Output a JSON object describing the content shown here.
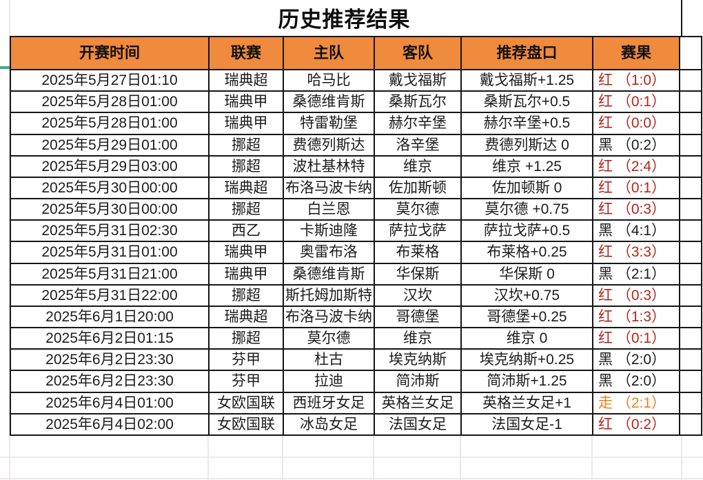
{
  "title": "历史推荐结果",
  "table": {
    "headers": [
      "开赛时间",
      "联赛",
      "主队",
      "客队",
      "推荐盘口",
      "赛果"
    ],
    "rows": [
      {
        "time": "2025年5月27日01:10",
        "league": "瑞典超",
        "home": "哈马比",
        "away": "戴戈福斯",
        "handicap": "戴戈福斯+1.25",
        "result": "红 （1:0）",
        "result_type": "red"
      },
      {
        "time": "2025年5月28日01:00",
        "league": "瑞典甲",
        "home": "桑德维肯斯",
        "away": "桑斯瓦尔",
        "handicap": "桑斯瓦尔+0.5",
        "result": "红 （0:1）",
        "result_type": "red"
      },
      {
        "time": "2025年5月28日01:00",
        "league": "瑞典甲",
        "home": "特雷勒堡",
        "away": "赫尔辛堡",
        "handicap": "赫尔辛堡+0.5",
        "result": "红 （0:0）",
        "result_type": "red"
      },
      {
        "time": "2025年5月29日01:00",
        "league": "挪超",
        "home": "费德列斯达",
        "away": "洛辛堡",
        "handicap": "费德列斯达 0",
        "result": "黑 （0:2）",
        "result_type": "black"
      },
      {
        "time": "2025年5月29日03:00",
        "league": "挪超",
        "home": "波杜基林特",
        "away": "维京",
        "handicap": "维京 +1.25",
        "result": "红 （2:4）",
        "result_type": "red"
      },
      {
        "time": "2025年5月30日00:00",
        "league": "瑞典超",
        "home": "布洛马波卡纳",
        "away": "佐加斯顿",
        "handicap": "佐加顿斯 0",
        "result": "红 （0:1）",
        "result_type": "red"
      },
      {
        "time": "2025年5月30日00:00",
        "league": "挪超",
        "home": "白兰恩",
        "away": "莫尔德",
        "handicap": "莫尔德 +0.75",
        "result": "红 （0:3）",
        "result_type": "red"
      },
      {
        "time": "2025年5月31日02:30",
        "league": "西乙",
        "home": "卡斯迪隆",
        "away": "萨拉戈萨",
        "handicap": "萨拉戈萨+0.5",
        "result": "黑 （4:1）",
        "result_type": "black"
      },
      {
        "time": "2025年5月31日01:00",
        "league": "瑞典甲",
        "home": "奥雷布洛",
        "away": "布莱格",
        "handicap": "布莱格+0.25",
        "result": "红 （3:3）",
        "result_type": "red"
      },
      {
        "time": "2025年5月31日21:00",
        "league": "瑞典甲",
        "home": "桑德维肯斯",
        "away": "华保斯",
        "handicap": "华保斯 0",
        "result": "黑 （2:1）",
        "result_type": "black"
      },
      {
        "time": "2025年5月31日22:00",
        "league": "挪超",
        "home": "斯托姆加斯特",
        "away": "汉坎",
        "handicap": "汉坎+0.75",
        "result": "红 （0:3）",
        "result_type": "red"
      },
      {
        "time": "2025年6月1日20:00",
        "league": "瑞典超",
        "home": "布洛马波卡纳",
        "away": "哥德堡",
        "handicap": "哥德堡+0.25",
        "result": "红 （1:3）",
        "result_type": "red"
      },
      {
        "time": "2025年6月2日01:15",
        "league": "挪超",
        "home": "莫尔德",
        "away": "维京",
        "handicap": "维京 0",
        "result": "红 （0:1）",
        "result_type": "red"
      },
      {
        "time": "2025年6月2日23:30",
        "league": "芬甲",
        "home": "杜古",
        "away": "埃克纳斯",
        "handicap": "埃克纳斯+0.25",
        "result": "黑 （2:0）",
        "result_type": "black"
      },
      {
        "time": "2025年6月2日23:30",
        "league": "芬甲",
        "home": "拉迪",
        "away": "简沛斯",
        "handicap": "简沛斯+1.25",
        "result": "黑 （2:0）",
        "result_type": "black"
      },
      {
        "time": "2025年6月4日01:00",
        "league": "女欧国联",
        "home": "西班牙女足",
        "away": "英格兰女足",
        "handicap": "英格兰女足+1",
        "result": "走 （2:1）",
        "result_type": "push"
      },
      {
        "time": "2025年6月4日02:00",
        "league": "女欧国联",
        "home": "冰岛女足",
        "away": "法国女足",
        "handicap": "法国女足-1",
        "result": "红 （0:2）",
        "result_type": "red"
      }
    ]
  },
  "colors": {
    "header_bg": "#f08a3c",
    "red": "#b3251c",
    "black": "#1c1c1c",
    "push": "#e8821e",
    "freeze_indicator_green": "#3bae85"
  }
}
